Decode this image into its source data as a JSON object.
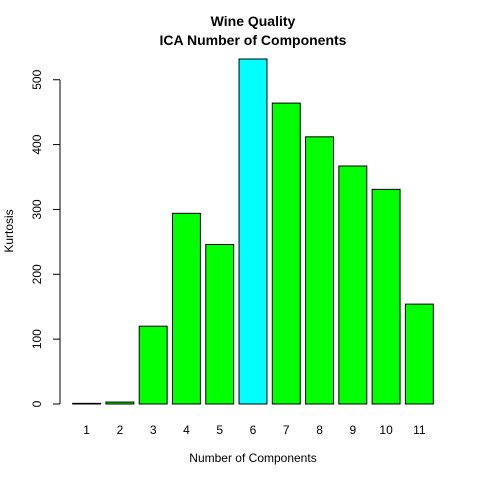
{
  "chart_data": {
    "type": "bar",
    "title": "Wine Quality",
    "subtitle": "ICA Number of Components",
    "xlabel": "Number of Components",
    "ylabel": "Kurtosis",
    "categories": [
      "1",
      "2",
      "3",
      "4",
      "5",
      "6",
      "7",
      "8",
      "9",
      "10",
      "11"
    ],
    "values": [
      1,
      3,
      120,
      294,
      246,
      532,
      464,
      412,
      367,
      331,
      154
    ],
    "ylim": [
      0,
      532
    ],
    "yticks": [
      0,
      100,
      200,
      300,
      400,
      500
    ],
    "highlight_index": 5,
    "colors": {
      "bar": "#00ff00",
      "highlight": "#00ffff",
      "outline": "#000000"
    },
    "grid": false,
    "legend": "none"
  }
}
